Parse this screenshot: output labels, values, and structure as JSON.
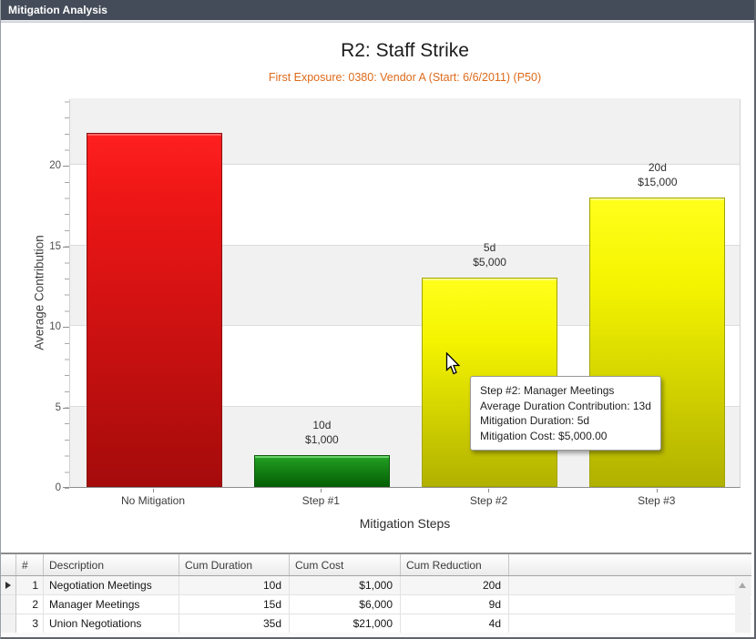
{
  "window": {
    "title": "Mitigation Analysis"
  },
  "chart": {
    "title": "R2: Staff Strike",
    "subtitle": "First Exposure: 0380: Vendor A (Start: 6/6/2011) (P50)",
    "y_axis_title": "Average Contribution",
    "x_axis_title": "Mitigation Steps",
    "y_ticks": [
      "0",
      "5",
      "10",
      "15",
      "20"
    ]
  },
  "chart_data": {
    "type": "bar",
    "title": "R2: Staff Strike",
    "subtitle": "First Exposure: 0380: Vendor A (Start: 6/6/2011) (P50)",
    "xlabel": "Mitigation Steps",
    "ylabel": "Average Contribution",
    "categories": [
      "No Mitigation",
      "Step #1",
      "Step #2",
      "Step #3"
    ],
    "values": [
      22,
      2,
      13,
      18
    ],
    "bar_colors": [
      "#cc1111",
      "#128012",
      "#d9d900",
      "#d9d900"
    ],
    "annotations": [
      {
        "duration": "",
        "cost": ""
      },
      {
        "duration": "10d",
        "cost": "$1,000"
      },
      {
        "duration": "5d",
        "cost": "$5,000"
      },
      {
        "duration": "20d",
        "cost": "$15,000"
      }
    ],
    "ylim": [
      0,
      24.2
    ],
    "y_major_step": 5,
    "y_minor_step": 1,
    "grid": "horizontal-major-on",
    "legend": "none",
    "plot_band_colors": [
      "#f1f1f1",
      "#ffffff"
    ]
  },
  "tooltip": {
    "lines": [
      "Step #2: Manager Meetings",
      "Average Duration Contribution: 13d",
      "Mitigation Duration: 5d",
      "Mitigation Cost: $5,000.00"
    ]
  },
  "table": {
    "headers": {
      "num": "#",
      "description": "Description",
      "cum_duration": "Cum Duration",
      "cum_cost": "Cum Cost",
      "cum_reduction": "Cum Reduction"
    },
    "rows": [
      {
        "num": "1",
        "description": "Negotiation Meetings",
        "cum_duration": "10d",
        "cum_cost": "$1,000",
        "cum_reduction": "20d"
      },
      {
        "num": "2",
        "description": "Manager Meetings",
        "cum_duration": "15d",
        "cum_cost": "$6,000",
        "cum_reduction": "9d"
      },
      {
        "num": "3",
        "description": "Union Negotiations",
        "cum_duration": "35d",
        "cum_cost": "$21,000",
        "cum_reduction": "4d"
      }
    ]
  }
}
